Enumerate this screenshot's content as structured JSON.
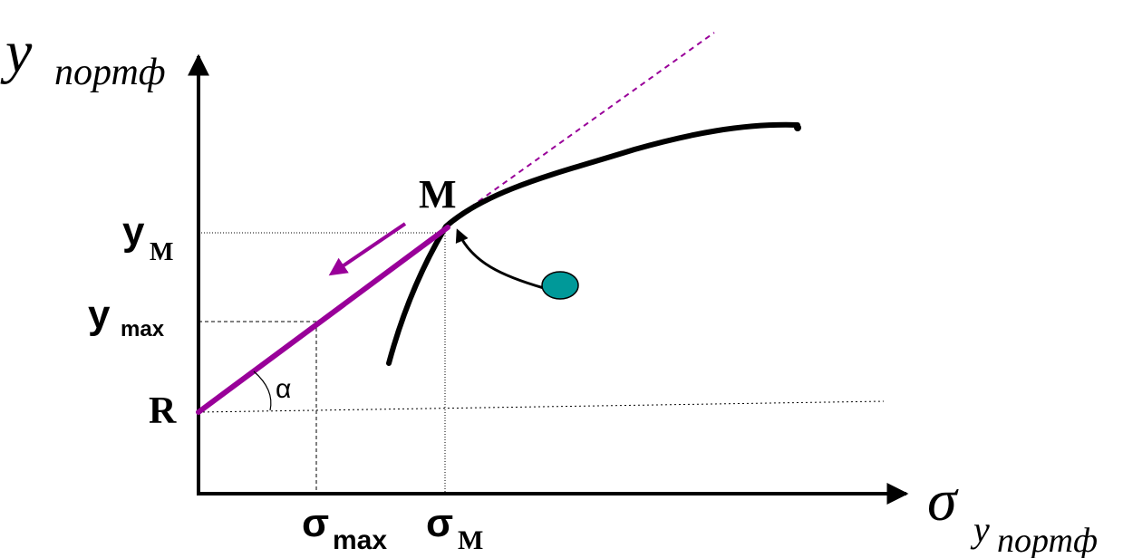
{
  "labels": {
    "y_axis_main": "y",
    "y_axis_sub": "портф",
    "x_axis_sigma": "σ",
    "x_axis_sub_y": "y",
    "x_axis_sub_sub": "портф",
    "point_m": "M",
    "point_r": "R",
    "y_m_main": "y",
    "y_m_sub": "M",
    "y_max_main": "y",
    "y_max_sub": "max",
    "sigma_max_main": "σ",
    "sigma_max_sub": "max",
    "sigma_m_main": "σ",
    "sigma_m_sub": "M",
    "angle_label": "α"
  },
  "colors": {
    "axis": "#000000",
    "capital_market_line": "#990099",
    "frontier_curve": "#000000",
    "portfolio_dot": "#009999",
    "dashed_guides": "#000000"
  },
  "icons": {
    "direction_arrow": "arrow-down-left-icon",
    "pointer_arrow": "curved-arrow-icon",
    "portfolio_marker": "ellipse-dot-icon"
  }
}
